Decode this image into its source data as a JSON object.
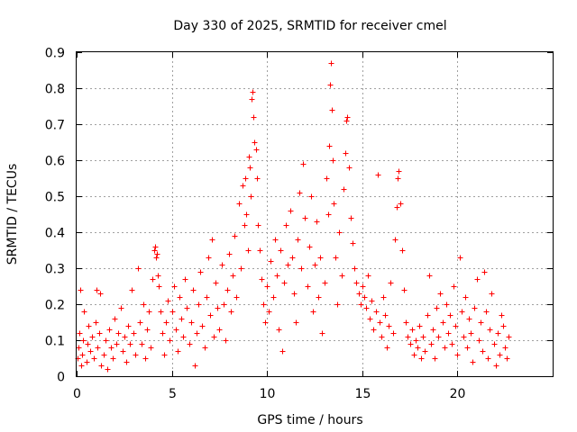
{
  "chart_data": {
    "type": "scatter",
    "title": "Day 330 of 2025, SRMTID for receiver cmel",
    "xlabel": "GPS time / hours",
    "ylabel": "SRMTID / TECUs",
    "xlim": [
      0,
      25
    ],
    "ylim": [
      0,
      0.9
    ],
    "xticks": [
      0,
      5,
      10,
      15,
      20
    ],
    "xtick_labels": [
      "0",
      "5",
      "10",
      "15",
      "20"
    ],
    "yticks": [
      0,
      0.1,
      0.2,
      0.3,
      0.4,
      0.5,
      0.6,
      0.7,
      0.8,
      0.9
    ],
    "ytick_labels": [
      "0",
      "0.1",
      "0.2",
      "0.3",
      "0.4",
      "0.5",
      "0.6",
      "0.7",
      "0.8",
      "0.9"
    ],
    "grid": true,
    "marker": "+",
    "marker_color": "#ff0000",
    "series": [
      {
        "name": "SRMTID",
        "points": [
          [
            0.05,
            0.05
          ],
          [
            0.1,
            0.08
          ],
          [
            0.15,
            0.12
          ],
          [
            0.2,
            0.24
          ],
          [
            0.25,
            0.03
          ],
          [
            0.3,
            0.06
          ],
          [
            0.35,
            0.1
          ],
          [
            0.4,
            0.18
          ],
          [
            0.5,
            0.04
          ],
          [
            0.55,
            0.09
          ],
          [
            0.6,
            0.14
          ],
          [
            0.7,
            0.07
          ],
          [
            0.8,
            0.11
          ],
          [
            0.9,
            0.05
          ],
          [
            1.0,
            0.15
          ],
          [
            1.05,
            0.24
          ],
          [
            1.1,
            0.08
          ],
          [
            1.2,
            0.12
          ],
          [
            1.25,
            0.23
          ],
          [
            1.3,
            0.03
          ],
          [
            1.4,
            0.06
          ],
          [
            1.5,
            0.1
          ],
          [
            1.6,
            0.02
          ],
          [
            1.7,
            0.13
          ],
          [
            1.8,
            0.08
          ],
          [
            1.9,
            0.05
          ],
          [
            2.0,
            0.16
          ],
          [
            2.1,
            0.09
          ],
          [
            2.2,
            0.12
          ],
          [
            2.3,
            0.19
          ],
          [
            2.4,
            0.07
          ],
          [
            2.5,
            0.11
          ],
          [
            2.6,
            0.04
          ],
          [
            2.7,
            0.14
          ],
          [
            2.8,
            0.09
          ],
          [
            2.9,
            0.24
          ],
          [
            3.0,
            0.12
          ],
          [
            3.1,
            0.06
          ],
          [
            3.2,
            0.3
          ],
          [
            3.3,
            0.15
          ],
          [
            3.4,
            0.09
          ],
          [
            3.5,
            0.2
          ],
          [
            3.6,
            0.05
          ],
          [
            3.7,
            0.13
          ],
          [
            3.8,
            0.18
          ],
          [
            3.9,
            0.08
          ],
          [
            4.0,
            0.27
          ],
          [
            4.05,
            0.35
          ],
          [
            4.1,
            0.36
          ],
          [
            4.15,
            0.33
          ],
          [
            4.2,
            0.34
          ],
          [
            4.25,
            0.28
          ],
          [
            4.3,
            0.25
          ],
          [
            4.4,
            0.18
          ],
          [
            4.5,
            0.12
          ],
          [
            4.6,
            0.06
          ],
          [
            4.7,
            0.15
          ],
          [
            4.8,
            0.21
          ],
          [
            4.9,
            0.1
          ],
          [
            5.0,
            0.18
          ],
          [
            5.1,
            0.25
          ],
          [
            5.2,
            0.13
          ],
          [
            5.3,
            0.07
          ],
          [
            5.4,
            0.22
          ],
          [
            5.5,
            0.16
          ],
          [
            5.6,
            0.11
          ],
          [
            5.7,
            0.27
          ],
          [
            5.8,
            0.19
          ],
          [
            5.9,
            0.09
          ],
          [
            6.0,
            0.15
          ],
          [
            6.1,
            0.24
          ],
          [
            6.2,
            0.03
          ],
          [
            6.3,
            0.12
          ],
          [
            6.4,
            0.2
          ],
          [
            6.5,
            0.29
          ],
          [
            6.6,
            0.14
          ],
          [
            6.7,
            0.08
          ],
          [
            6.8,
            0.22
          ],
          [
            6.9,
            0.33
          ],
          [
            7.0,
            0.17
          ],
          [
            7.1,
            0.38
          ],
          [
            7.2,
            0.11
          ],
          [
            7.3,
            0.26
          ],
          [
            7.4,
            0.19
          ],
          [
            7.5,
            0.13
          ],
          [
            7.6,
            0.31
          ],
          [
            7.7,
            0.2
          ],
          [
            7.8,
            0.1
          ],
          [
            7.9,
            0.24
          ],
          [
            8.0,
            0.34
          ],
          [
            8.1,
            0.18
          ],
          [
            8.2,
            0.28
          ],
          [
            8.3,
            0.39
          ],
          [
            8.4,
            0.22
          ],
          [
            8.5,
            0.48
          ],
          [
            8.6,
            0.3
          ],
          [
            8.7,
            0.53
          ],
          [
            8.8,
            0.42
          ],
          [
            8.85,
            0.55
          ],
          [
            8.9,
            0.45
          ],
          [
            9.0,
            0.35
          ],
          [
            9.05,
            0.61
          ],
          [
            9.1,
            0.58
          ],
          [
            9.15,
            0.5
          ],
          [
            9.2,
            0.77
          ],
          [
            9.25,
            0.79
          ],
          [
            9.3,
            0.72
          ],
          [
            9.35,
            0.65
          ],
          [
            9.4,
            0.63
          ],
          [
            9.45,
            0.55
          ],
          [
            9.5,
            0.42
          ],
          [
            9.6,
            0.35
          ],
          [
            9.7,
            0.27
          ],
          [
            9.8,
            0.2
          ],
          [
            9.9,
            0.15
          ],
          [
            10.0,
            0.25
          ],
          [
            10.1,
            0.18
          ],
          [
            10.2,
            0.32
          ],
          [
            10.3,
            0.22
          ],
          [
            10.4,
            0.38
          ],
          [
            10.5,
            0.28
          ],
          [
            10.6,
            0.13
          ],
          [
            10.7,
            0.35
          ],
          [
            10.8,
            0.07
          ],
          [
            10.9,
            0.26
          ],
          [
            11.0,
            0.42
          ],
          [
            11.1,
            0.31
          ],
          [
            11.2,
            0.46
          ],
          [
            11.3,
            0.33
          ],
          [
            11.4,
            0.23
          ],
          [
            11.5,
            0.15
          ],
          [
            11.6,
            0.38
          ],
          [
            11.7,
            0.51
          ],
          [
            11.8,
            0.3
          ],
          [
            11.9,
            0.59
          ],
          [
            12.0,
            0.44
          ],
          [
            12.1,
            0.25
          ],
          [
            12.2,
            0.36
          ],
          [
            12.3,
            0.5
          ],
          [
            12.4,
            0.18
          ],
          [
            12.5,
            0.31
          ],
          [
            12.6,
            0.43
          ],
          [
            12.7,
            0.22
          ],
          [
            12.8,
            0.33
          ],
          [
            12.9,
            0.12
          ],
          [
            13.0,
            0.26
          ],
          [
            13.1,
            0.55
          ],
          [
            13.2,
            0.45
          ],
          [
            13.25,
            0.64
          ],
          [
            13.3,
            0.81
          ],
          [
            13.35,
            0.87
          ],
          [
            13.4,
            0.74
          ],
          [
            13.45,
            0.6
          ],
          [
            13.5,
            0.48
          ],
          [
            13.6,
            0.33
          ],
          [
            13.7,
            0.2
          ],
          [
            13.8,
            0.4
          ],
          [
            13.9,
            0.28
          ],
          [
            14.0,
            0.52
          ],
          [
            14.1,
            0.62
          ],
          [
            14.15,
            0.71
          ],
          [
            14.2,
            0.72
          ],
          [
            14.3,
            0.58
          ],
          [
            14.4,
            0.44
          ],
          [
            14.5,
            0.37
          ],
          [
            14.6,
            0.3
          ],
          [
            14.7,
            0.26
          ],
          [
            14.8,
            0.23
          ],
          [
            14.9,
            0.2
          ],
          [
            15.0,
            0.25
          ],
          [
            15.1,
            0.22
          ],
          [
            15.2,
            0.19
          ],
          [
            15.3,
            0.28
          ],
          [
            15.4,
            0.16
          ],
          [
            15.5,
            0.21
          ],
          [
            15.6,
            0.13
          ],
          [
            15.7,
            0.18
          ],
          [
            15.8,
            0.56
          ],
          [
            15.9,
            0.15
          ],
          [
            16.0,
            0.11
          ],
          [
            16.1,
            0.22
          ],
          [
            16.2,
            0.17
          ],
          [
            16.3,
            0.08
          ],
          [
            16.4,
            0.14
          ],
          [
            16.5,
            0.26
          ],
          [
            16.6,
            0.12
          ],
          [
            16.7,
            0.38
          ],
          [
            16.8,
            0.47
          ],
          [
            16.85,
            0.55
          ],
          [
            16.9,
            0.57
          ],
          [
            17.0,
            0.48
          ],
          [
            17.1,
            0.35
          ],
          [
            17.2,
            0.24
          ],
          [
            17.3,
            0.15
          ],
          [
            17.4,
            0.11
          ],
          [
            17.5,
            0.09
          ],
          [
            17.6,
            0.13
          ],
          [
            17.7,
            0.06
          ],
          [
            17.8,
            0.1
          ],
          [
            17.9,
            0.08
          ],
          [
            18.0,
            0.14
          ],
          [
            18.1,
            0.05
          ],
          [
            18.2,
            0.11
          ],
          [
            18.3,
            0.07
          ],
          [
            18.4,
            0.17
          ],
          [
            18.5,
            0.28
          ],
          [
            18.6,
            0.09
          ],
          [
            18.7,
            0.13
          ],
          [
            18.8,
            0.05
          ],
          [
            18.9,
            0.19
          ],
          [
            19.0,
            0.11
          ],
          [
            19.1,
            0.23
          ],
          [
            19.2,
            0.15
          ],
          [
            19.3,
            0.08
          ],
          [
            19.4,
            0.2
          ],
          [
            19.5,
            0.12
          ],
          [
            19.6,
            0.17
          ],
          [
            19.7,
            0.09
          ],
          [
            19.8,
            0.25
          ],
          [
            19.9,
            0.14
          ],
          [
            20.0,
            0.06
          ],
          [
            20.1,
            0.33
          ],
          [
            20.2,
            0.18
          ],
          [
            20.3,
            0.11
          ],
          [
            20.4,
            0.22
          ],
          [
            20.5,
            0.08
          ],
          [
            20.6,
            0.16
          ],
          [
            20.7,
            0.12
          ],
          [
            20.8,
            0.04
          ],
          [
            20.9,
            0.19
          ],
          [
            21.0,
            0.27
          ],
          [
            21.1,
            0.1
          ],
          [
            21.2,
            0.15
          ],
          [
            21.3,
            0.07
          ],
          [
            21.4,
            0.29
          ],
          [
            21.5,
            0.18
          ],
          [
            21.6,
            0.05
          ],
          [
            21.7,
            0.13
          ],
          [
            21.8,
            0.23
          ],
          [
            21.9,
            0.09
          ],
          [
            22.0,
            0.03
          ],
          [
            22.1,
            0.12
          ],
          [
            22.2,
            0.06
          ],
          [
            22.3,
            0.17
          ],
          [
            22.4,
            0.14
          ],
          [
            22.5,
            0.08
          ],
          [
            22.6,
            0.05
          ],
          [
            22.7,
            0.11
          ]
        ]
      }
    ]
  }
}
